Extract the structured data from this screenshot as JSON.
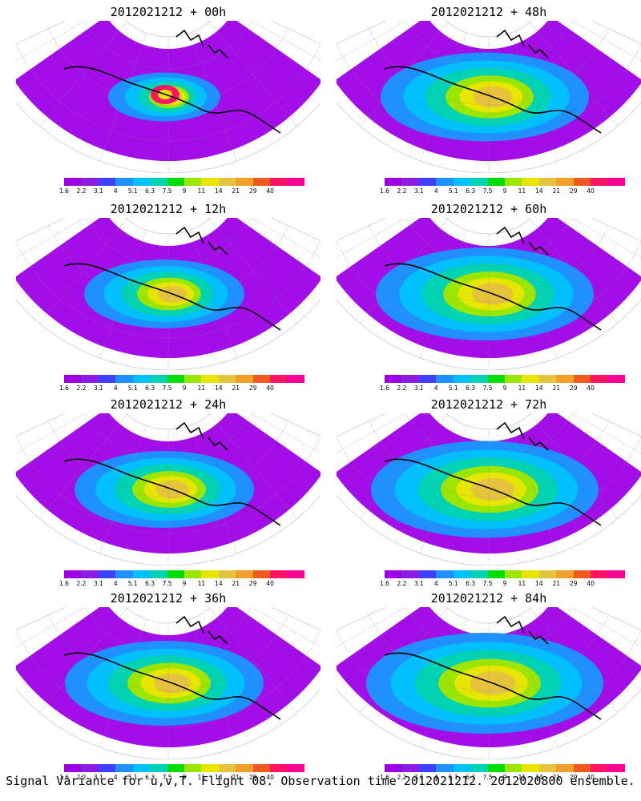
{
  "panels": [
    {
      "id": "p00",
      "title": "2012021212 + 00h",
      "fill": 0.25
    },
    {
      "id": "p48",
      "title": "2012021212 + 48h",
      "fill": 0.75
    },
    {
      "id": "p12",
      "title": "2012021212 + 12h",
      "fill": 0.5
    },
    {
      "id": "p60",
      "title": "2012021212 + 60h",
      "fill": 0.8
    },
    {
      "id": "p24",
      "title": "2012021212 + 24h",
      "fill": 0.6
    },
    {
      "id": "p72",
      "title": "2012021212 + 72h",
      "fill": 0.85
    },
    {
      "id": "p36",
      "title": "2012021212 + 36h",
      "fill": 0.7
    },
    {
      "id": "p84",
      "title": "2012021212 + 84h",
      "fill": 0.9
    }
  ],
  "colorbar": {
    "labels": [
      "1.6",
      "2.2",
      "3.1",
      "4",
      "5.1",
      "6.3",
      "7.5",
      "9",
      "11",
      "14",
      "21",
      "29",
      "40"
    ],
    "colors": [
      "#9e00e6",
      "#8a1ee0",
      "#4040ff",
      "#1e90ff",
      "#00c0ff",
      "#00d2b4",
      "#00dc00",
      "#9be600",
      "#e6e600",
      "#e6c33c",
      "#f0a028",
      "#f05a1e",
      "#ff1464",
      "#ff0096"
    ]
  },
  "footer": "Signal Variance for u,v,T. Flight 08. Observation time 2012021212. 2012020800 ensemble."
}
